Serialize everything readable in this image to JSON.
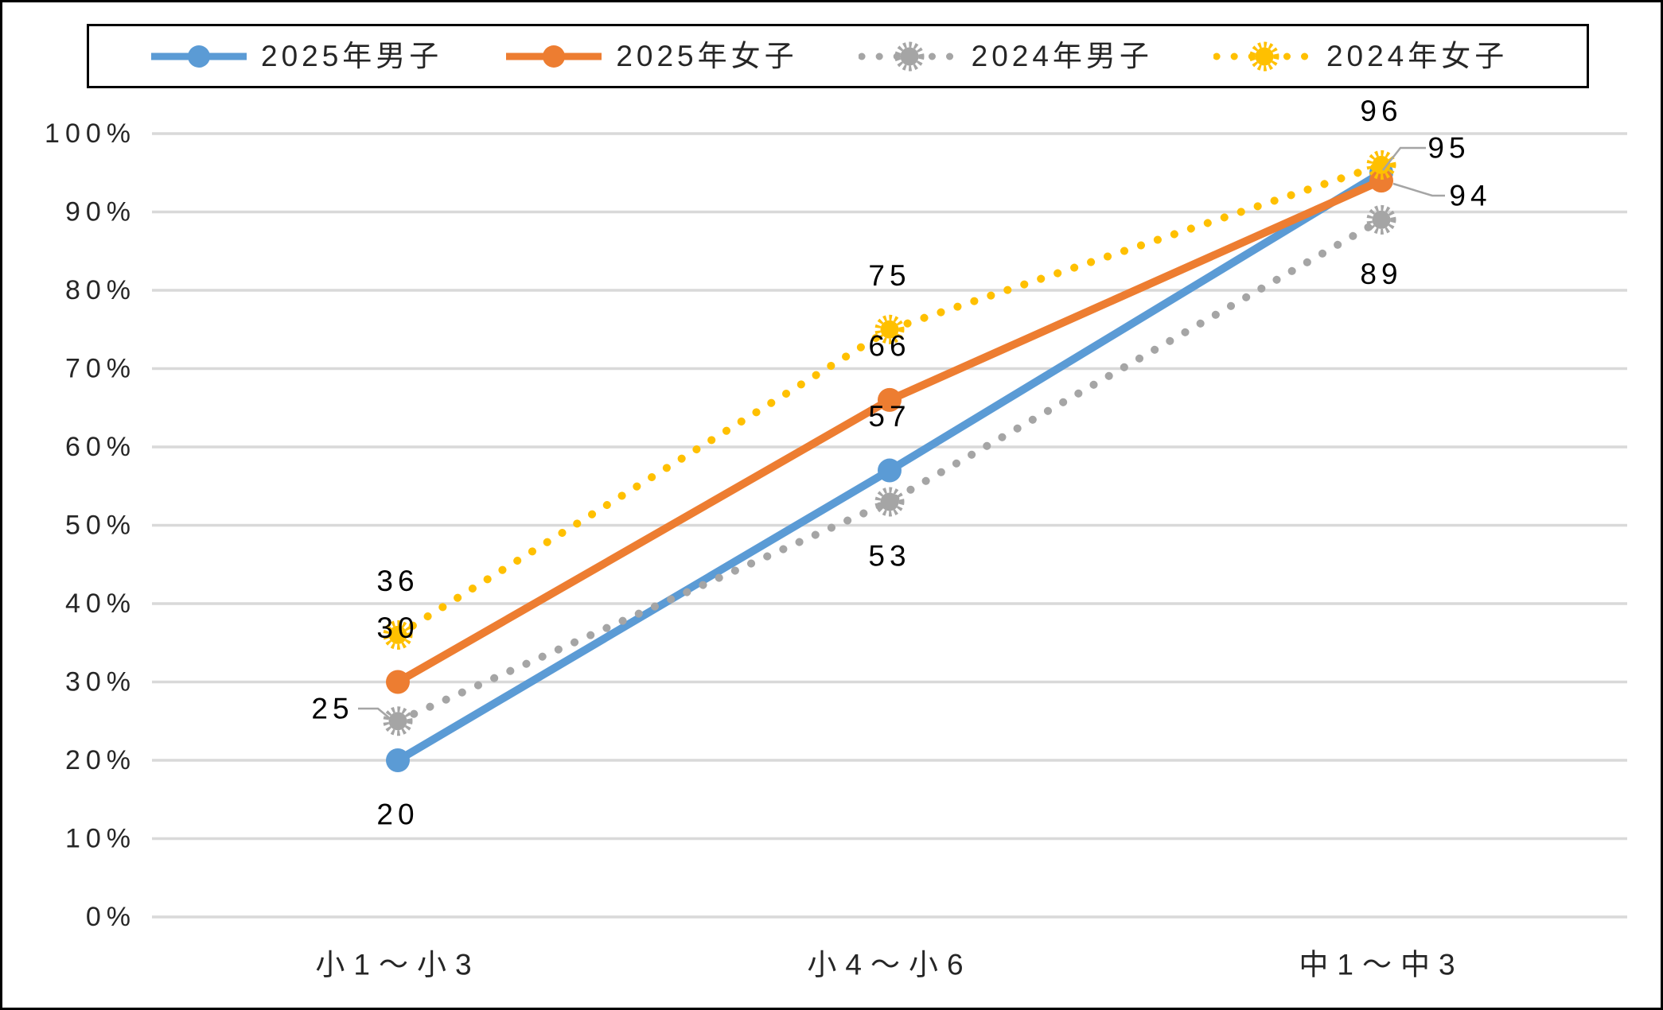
{
  "chart_data": {
    "type": "line",
    "title": "",
    "categories": [
      "小1～小3",
      "小4～小6",
      "中1～中3"
    ],
    "series": [
      {
        "name": "2025年男子",
        "color": "#5B9BD5",
        "line_style": "solid",
        "marker": "circle",
        "values": [
          20,
          57,
          95
        ],
        "label_placements": [
          "below",
          "above",
          "leader-right"
        ]
      },
      {
        "name": "2025年女子",
        "color": "#ED7D31",
        "line_style": "solid",
        "marker": "circle",
        "values": [
          30,
          66,
          94
        ],
        "label_placements": [
          "above",
          "above",
          "leader-right"
        ]
      },
      {
        "name": "2024年男子",
        "color": "#A5A5A5",
        "line_style": "dotted",
        "marker": "sun",
        "values": [
          25,
          53,
          89
        ],
        "label_placements": [
          "leader-left",
          "below",
          "below"
        ]
      },
      {
        "name": "2024年女子",
        "color": "#FFC000",
        "line_style": "dotted",
        "marker": "sun",
        "values": [
          36,
          75,
          96
        ],
        "label_placements": [
          "above",
          "above",
          "above"
        ]
      }
    ],
    "data_labels": {
      "series_0": [
        "20",
        "57",
        "95"
      ],
      "series_1": [
        "30",
        "66",
        "94"
      ],
      "series_2": [
        "25",
        "53",
        "89"
      ],
      "series_3": [
        "36",
        "75",
        "96"
      ]
    },
    "ylim": [
      0,
      100
    ],
    "ytick_labels": [
      "0%",
      "10%",
      "20%",
      "30%",
      "40%",
      "50%",
      "60%",
      "70%",
      "80%",
      "90%",
      "100%"
    ],
    "grid": true,
    "legend_position": "top",
    "legend_border": true
  },
  "colors": {
    "gridline": "#D9D9D9",
    "axis_text": "#262626",
    "data_label_text": "#000000",
    "leader_line": "#A5A5A5",
    "border": "#000000",
    "background": "#FFFFFF"
  }
}
